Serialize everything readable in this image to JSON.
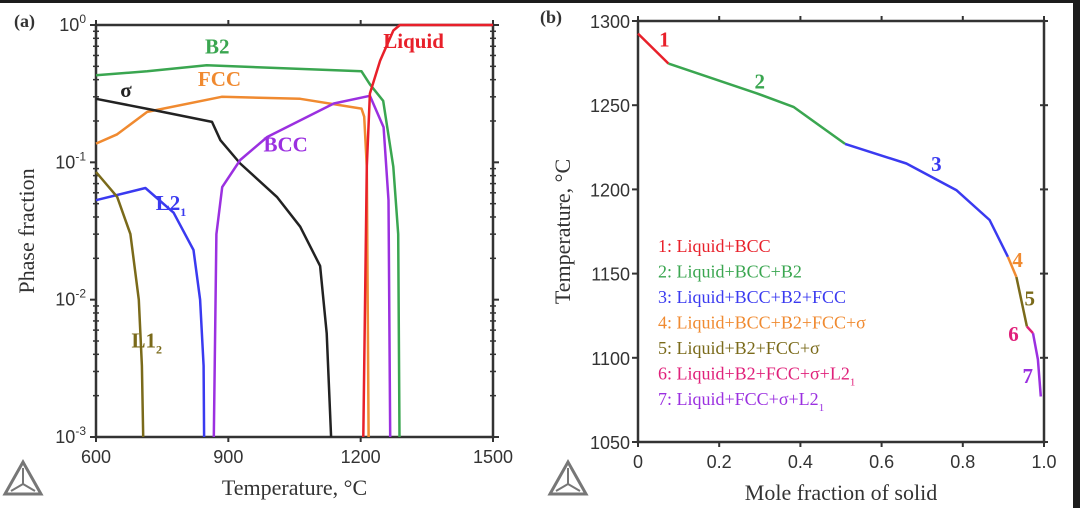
{
  "chart_data": [
    {
      "type": "line",
      "panel_label": "(a)",
      "xlabel": "Temperature, °C",
      "ylabel": "Phase fraction",
      "xlim": [
        600,
        1500
      ],
      "ylim": [
        0.001,
        1
      ],
      "yscale": "log",
      "xticks": [
        "600",
        "900",
        "1200",
        "1500"
      ],
      "xtick_values": [
        600,
        900,
        1200,
        1500
      ],
      "yticks": [
        {
          "base": "10",
          "exp": "0",
          "value": 1
        },
        {
          "base": "10",
          "exp": "-1",
          "value": 0.1
        },
        {
          "base": "10",
          "exp": "-2",
          "value": 0.01
        },
        {
          "base": "10",
          "exp": "-3",
          "value": 0.001
        }
      ],
      "series": [
        {
          "name": "B2",
          "label": "B2",
          "color": "#3aa650",
          "label_at": [
            875,
            0.62
          ],
          "x": [
            600,
            716,
            851,
            1202,
            1221,
            1251,
            1274,
            1285,
            1288
          ],
          "y": [
            0.43,
            0.46,
            0.51,
            0.46,
            0.37,
            0.28,
            0.093,
            0.03,
            0.001
          ]
        },
        {
          "name": "FCC",
          "label": "FCC",
          "color": "#f08a30",
          "label_at": [
            880,
            0.36
          ],
          "x": [
            600,
            648,
            716,
            885,
            1063,
            1202,
            1208,
            1214,
            1218
          ],
          "y": [
            0.137,
            0.16,
            0.233,
            0.3,
            0.29,
            0.246,
            0.215,
            0.093,
            0.001
          ]
        },
        {
          "name": "sigma",
          "label": "σ",
          "color": "#222222",
          "label_at": [
            668,
            0.3
          ],
          "x": [
            600,
            731,
            863,
            882,
            927,
            1010,
            1063,
            1108,
            1123,
            1133
          ],
          "y": [
            0.29,
            0.24,
            0.197,
            0.145,
            0.098,
            0.056,
            0.034,
            0.0176,
            0.0057,
            0.001
          ]
        },
        {
          "name": "BCC",
          "label": "BCC",
          "color": "#9b30e0",
          "label_at": [
            1030,
            0.12
          ],
          "x": [
            867,
            873,
            886,
            927,
            988,
            1139,
            1221,
            1252,
            1263,
            1267
          ],
          "y": [
            0.001,
            0.03,
            0.066,
            0.104,
            0.153,
            0.268,
            0.305,
            0.18,
            0.053,
            0.001
          ]
        },
        {
          "name": "Liquid",
          "label": "Liquid",
          "color": "#e8202a",
          "label_at": [
            1320,
            0.68
          ],
          "x": [
            1206,
            1214,
            1221,
            1244,
            1274,
            1289,
            1500
          ],
          "y": [
            0.001,
            0.093,
            0.317,
            0.55,
            0.91,
            1.0,
            1.0
          ]
        },
        {
          "name": "L2_1",
          "label": "L2",
          "sub": "1",
          "color": "#3a3af0",
          "label_at": [
            770,
            0.045
          ],
          "x": [
            600,
            712,
            776,
            821,
            836,
            844,
            845
          ],
          "y": [
            0.053,
            0.065,
            0.043,
            0.023,
            0.01,
            0.0033,
            0.001
          ]
        },
        {
          "name": "L1_2",
          "label": "L1",
          "sub": "2",
          "color": "#7a6a1a",
          "label_at": [
            715,
            0.0045
          ],
          "x": [
            600,
            648,
            678,
            697,
            704,
            707
          ],
          "y": [
            0.085,
            0.056,
            0.03,
            0.01,
            0.0033,
            0.001
          ]
        }
      ]
    },
    {
      "type": "line",
      "panel_label": "(b)",
      "xlabel": "Mole fraction of solid",
      "ylabel": "Temperature, °C",
      "xlim": [
        0,
        1.0
      ],
      "ylim": [
        1050,
        1300
      ],
      "xticks": [
        "0",
        "0.2",
        "0.4",
        "0.6",
        "0.8",
        "1.0"
      ],
      "xtick_values": [
        0,
        0.2,
        0.4,
        0.6,
        0.8,
        1.0
      ],
      "yticks": [
        "1050",
        "1100",
        "1150",
        "1200",
        "1250",
        "1300"
      ],
      "ytick_values": [
        1050,
        1100,
        1150,
        1200,
        1250,
        1300
      ],
      "series": [
        {
          "name": "1",
          "label": "1",
          "color": "#e8202a",
          "label_at": [
            0.065,
            1285
          ],
          "legend": "1: Liquid+BCC",
          "x": [
            0,
            0.075
          ],
          "y": [
            1292.5,
            1274.7
          ]
        },
        {
          "name": "2",
          "label": "2",
          "color": "#3aa650",
          "label_at": [
            0.3,
            1260
          ],
          "legend": "2: Liquid+BCC+B2",
          "x": [
            0.075,
            0.293,
            0.383,
            0.51
          ],
          "y": [
            1274.7,
            1257,
            1249,
            1227
          ]
        },
        {
          "name": "3",
          "label": "3",
          "color": "#3a3af0",
          "label_at": [
            0.735,
            1211
          ],
          "legend": "3: Liquid+BCC+B2+FCC",
          "x": [
            0.51,
            0.661,
            0.784,
            0.866,
            0.911
          ],
          "y": [
            1227,
            1215.4,
            1199.6,
            1181.8,
            1160
          ]
        },
        {
          "name": "4",
          "label": "4",
          "color": "#f08a30",
          "label_at": [
            0.935,
            1154
          ],
          "legend": "4: Liquid+BCC+B2+FCC+σ",
          "x": [
            0.911,
            0.932
          ],
          "y": [
            1160,
            1148
          ]
        },
        {
          "name": "5",
          "label": "5",
          "color": "#7a6a1a",
          "label_at": [
            0.965,
            1131
          ],
          "legend": "5: Liquid+B2+FCC+σ",
          "x": [
            0.932,
            0.958
          ],
          "y": [
            1148,
            1118.6
          ]
        },
        {
          "name": "6",
          "label": "6",
          "color": "#e0207a",
          "label_at": [
            0.925,
            1110
          ],
          "legend": "6: Liquid+B2+FCC+σ+L2",
          "legend_sub": "1",
          "x": [
            0.958,
            0.973
          ],
          "y": [
            1118.6,
            1114.6
          ]
        },
        {
          "name": "7",
          "label": "7",
          "color": "#9b30e0",
          "label_at": [
            0.96,
            1085
          ],
          "legend": "7: Liquid+FCC+σ+L2",
          "legend_sub": "1",
          "x": [
            0.973,
            0.985,
            0.992
          ],
          "y": [
            1114.6,
            1099,
            1077
          ]
        }
      ]
    }
  ]
}
